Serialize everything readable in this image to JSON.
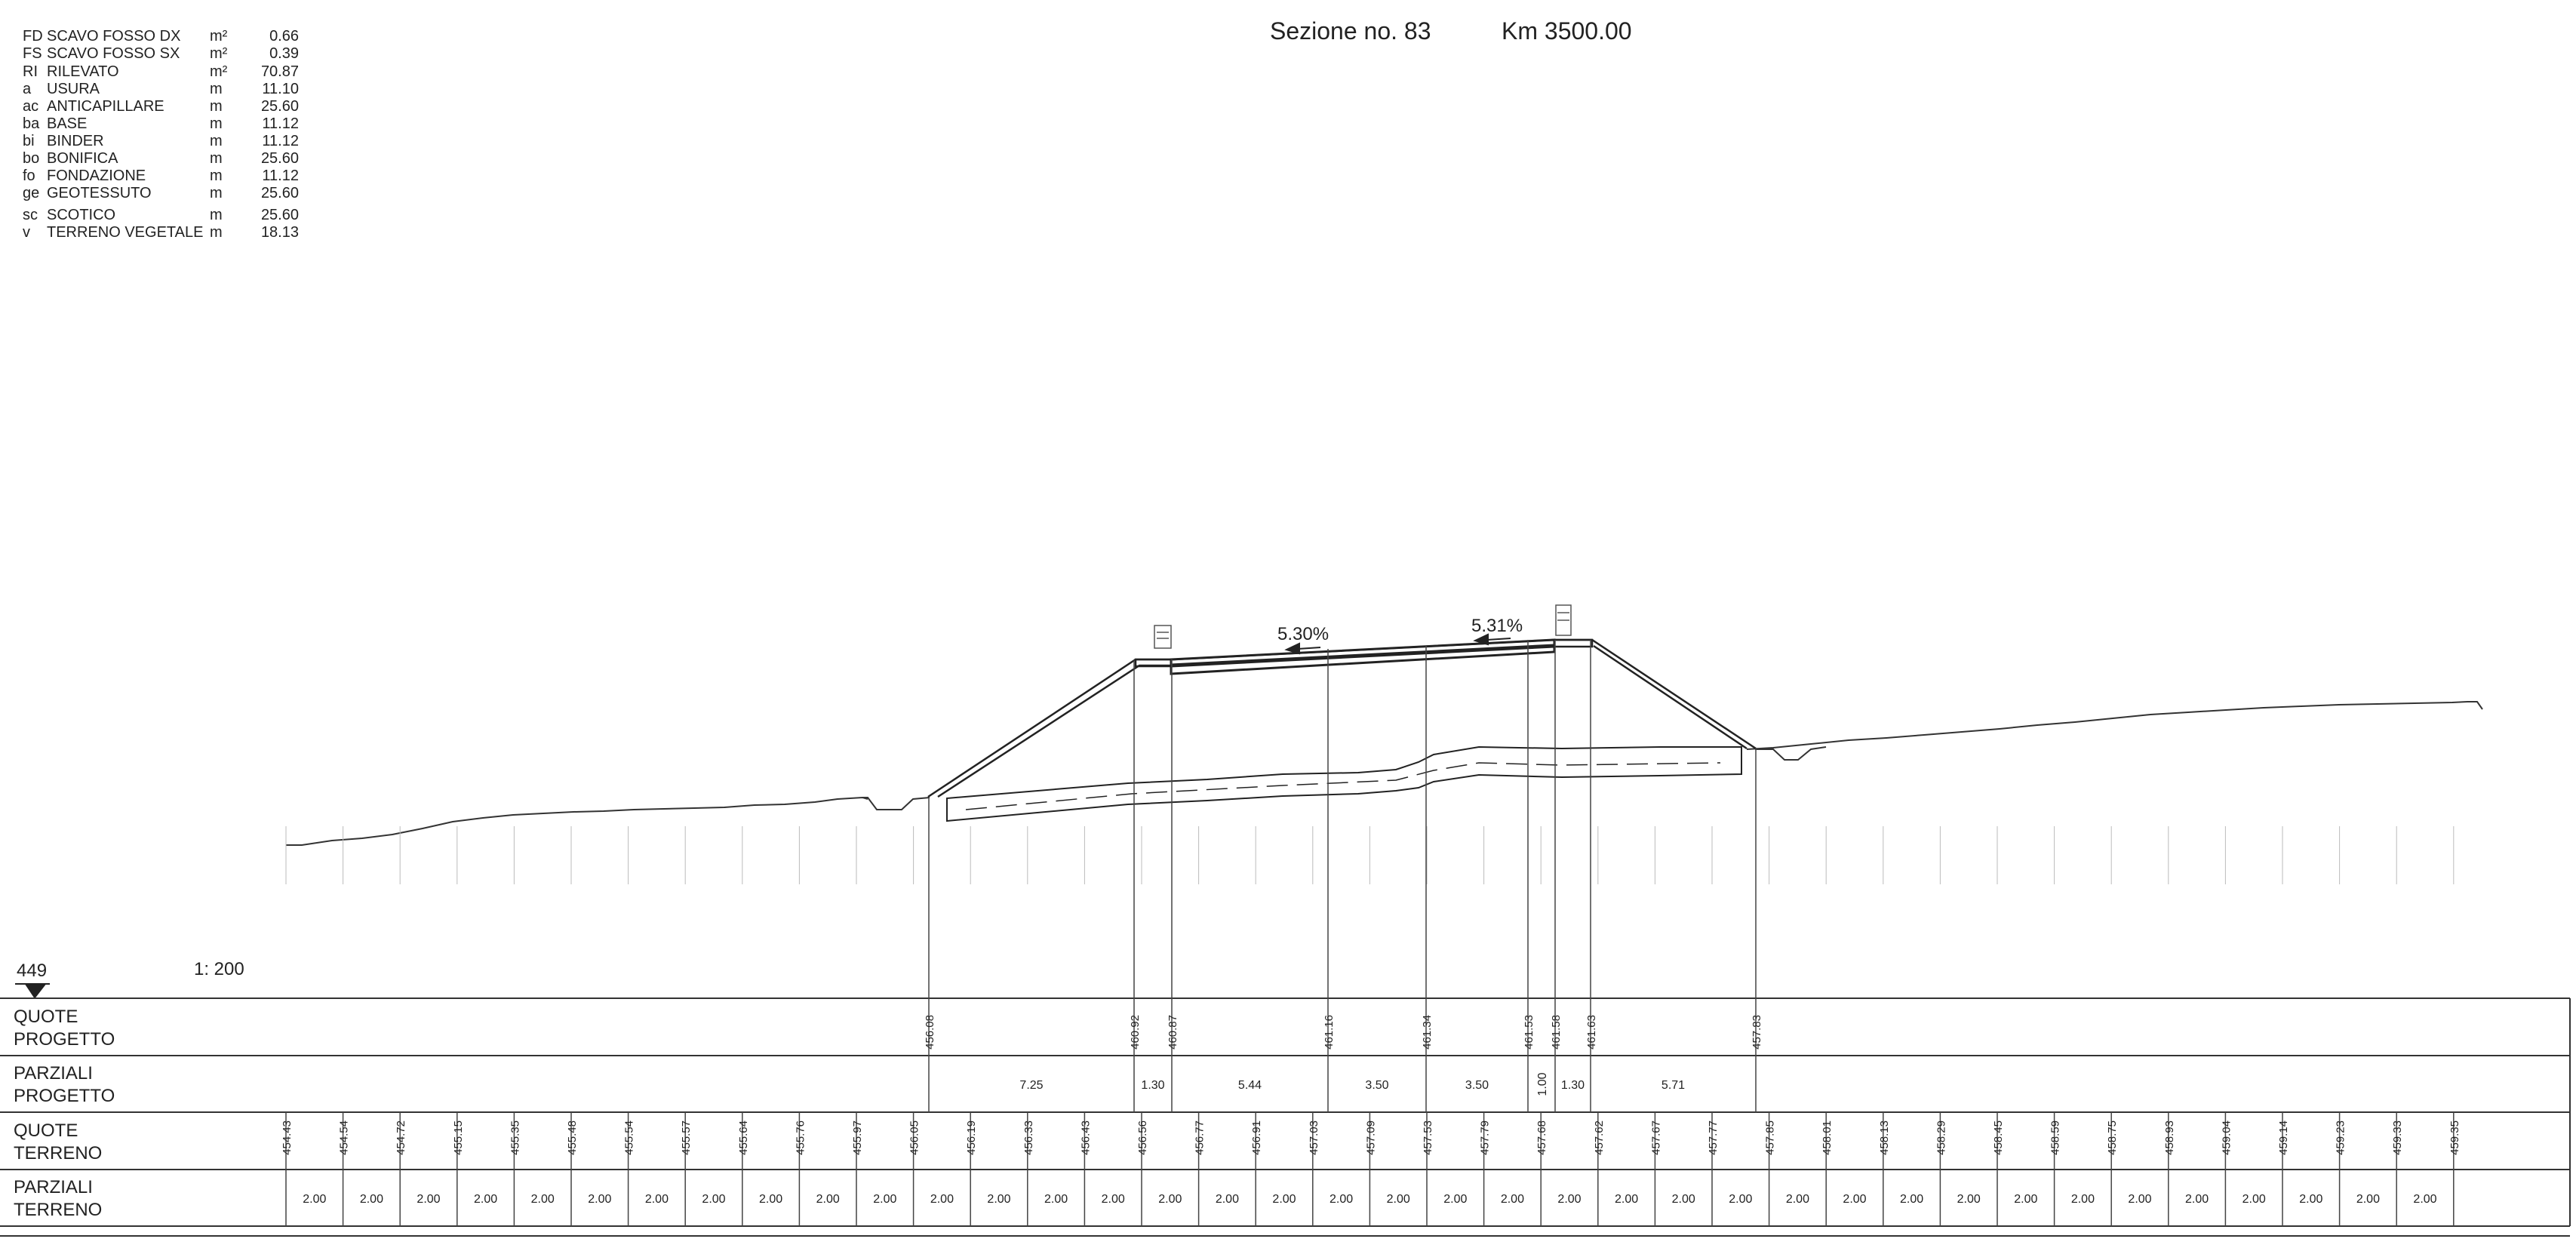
{
  "header": {
    "section_label": "Sezione no. 83",
    "km_label": "Km 3500.00"
  },
  "legend": [
    {
      "code": "FD",
      "name": "SCAVO FOSSO DX",
      "unit": "m²",
      "value": "0.66"
    },
    {
      "code": "FS",
      "name": "SCAVO FOSSO SX",
      "unit": "m²",
      "value": "0.39"
    },
    {
      "code": "RI",
      "name": "RILEVATO",
      "unit": "m²",
      "value": "70.87"
    },
    {
      "code": "a",
      "name": "USURA",
      "unit": "m",
      "value": "11.10"
    },
    {
      "code": "ac",
      "name": "ANTICAPILLARE",
      "unit": "m",
      "value": "25.60"
    },
    {
      "code": "ba",
      "name": "BASE",
      "unit": "m",
      "value": "11.12"
    },
    {
      "code": "bi",
      "name": "BINDER",
      "unit": "m",
      "value": "11.12"
    },
    {
      "code": "bo",
      "name": "BONIFICA",
      "unit": "m",
      "value": "25.60"
    },
    {
      "code": "fo",
      "name": "FONDAZIONE",
      "unit": "m",
      "value": "11.12"
    },
    {
      "code": "ge",
      "name": "GEOTESSUTO",
      "unit": "m",
      "value": "25.60"
    },
    {
      "code": "sc",
      "name": "SCOTICO",
      "unit": "m",
      "value": "25.60"
    },
    {
      "code": "v",
      "name": "TERRENO VEGETALE",
      "unit": "m",
      "value": "18.13"
    }
  ],
  "datum": "449",
  "scale": "1:  200",
  "slopes": {
    "left": "5.30%",
    "right": "5.31%"
  },
  "rows": {
    "quote_progetto": [
      "QUOTE",
      "PROGETTO"
    ],
    "parziali_progetto": [
      "PARZIALI",
      "PROGETTO"
    ],
    "quote_terreno": [
      "QUOTE",
      "TERRENO"
    ],
    "parziali_terreno": [
      "PARZIALI",
      "TERRENO"
    ]
  },
  "quote_progetto": [
    "456.08",
    "460.92",
    "460.87",
    "461.16",
    "461.34",
    "461.53",
    "461.58",
    "461.63",
    "457.83"
  ],
  "parziali_progetto": [
    "7.25",
    "1.30",
    "5.44",
    "3.50",
    "3.50",
    "1.00",
    "1.30",
    "5.71"
  ],
  "quote_terreno": [
    "454.43",
    "454.54",
    "454.72",
    "455.15",
    "455.35",
    "455.48",
    "455.54",
    "455.57",
    "455.64",
    "455.76",
    "455.97",
    "456.05",
    "456.19",
    "456.33",
    "456.43",
    "456.56",
    "456.77",
    "456.91",
    "457.03",
    "457.09",
    "457.53",
    "457.79",
    "457.68",
    "457.62",
    "457.67",
    "457.77",
    "457.85",
    "458.01",
    "458.13",
    "458.29",
    "458.45",
    "458.59",
    "458.75",
    "458.93",
    "459.04",
    "459.14",
    "459.23",
    "459.33",
    "459.35"
  ],
  "parziali_terreno": [
    "2.00",
    "2.00",
    "2.00",
    "2.00",
    "2.00",
    "2.00",
    "2.00",
    "2.00",
    "2.00",
    "2.00",
    "2.00",
    "2.00",
    "2.00",
    "2.00",
    "2.00",
    "2.00",
    "2.00",
    "2.00",
    "2.00",
    "2.00",
    "2.00",
    "2.00",
    "2.00",
    "2.00",
    "2.00",
    "2.00",
    "2.00",
    "2.00",
    "2.00",
    "2.00",
    "2.00",
    "2.00",
    "2.00",
    "2.00",
    "2.00",
    "2.00",
    "2.00",
    "2.00"
  ]
}
